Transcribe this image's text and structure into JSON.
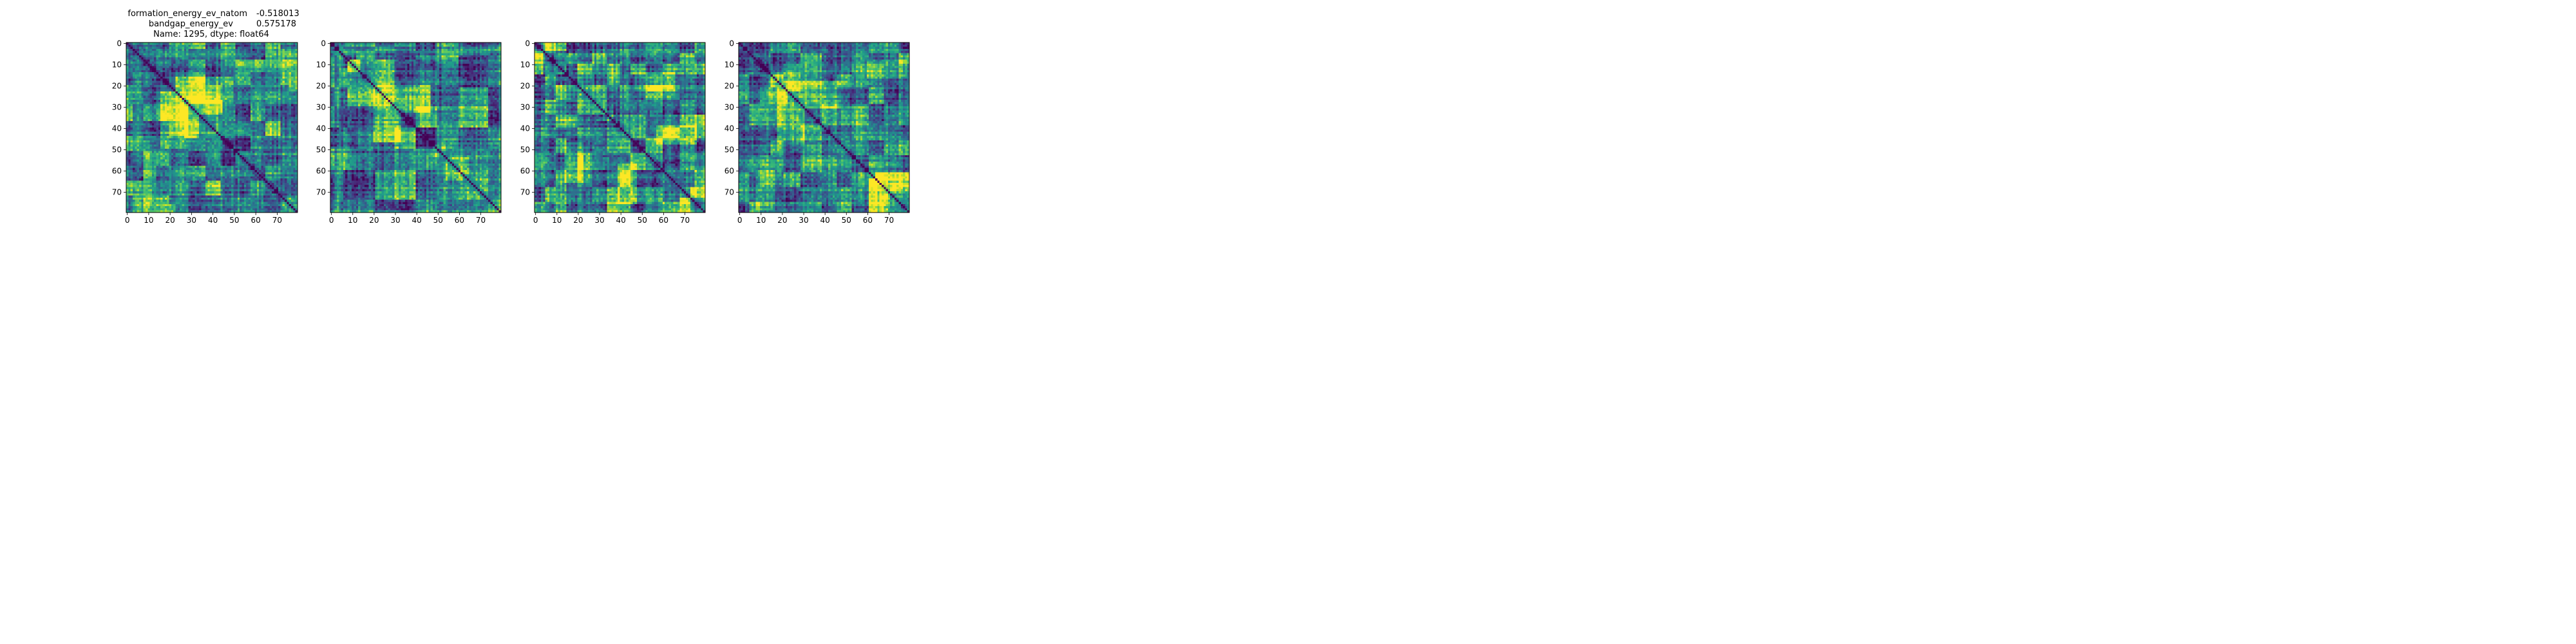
{
  "title": {
    "row1_label": "formation_energy_ev_natom",
    "row1_value": "-0.518013",
    "row2_label": "bandgap_energy_ev",
    "row2_value": "0.575178",
    "row3": "Name: 1295, dtype: float64"
  },
  "chart_data": [
    {
      "type": "heatmap",
      "n": 80,
      "colormap": "viridis",
      "xticks": [
        0,
        10,
        20,
        30,
        40,
        50,
        60,
        70
      ],
      "yticks": [
        0,
        10,
        20,
        30,
        40,
        50,
        60,
        70
      ],
      "block_boundaries": [
        0,
        3,
        8,
        14,
        20,
        29,
        37,
        44,
        51,
        58,
        65,
        72,
        80
      ],
      "diagonal": "dark",
      "seed": 11
    },
    {
      "type": "heatmap",
      "n": 80,
      "colormap": "viridis",
      "xticks": [
        0,
        10,
        20,
        30,
        40,
        50,
        60,
        70
      ],
      "yticks": [
        0,
        10,
        20,
        30,
        40,
        50,
        60,
        70
      ],
      "block_boundaries": [
        0,
        2,
        4,
        6,
        8,
        12,
        21,
        30,
        40,
        50,
        60,
        74,
        80
      ],
      "diagonal": "dark",
      "seed": 23
    },
    {
      "type": "heatmap",
      "n": 80,
      "colormap": "viridis",
      "xticks": [
        0,
        10,
        20,
        30,
        40,
        50,
        60,
        70
      ],
      "yticks": [
        0,
        10,
        20,
        30,
        40,
        50,
        60,
        70
      ],
      "block_boundaries": [
        0,
        5,
        10,
        15,
        20,
        27,
        34,
        40,
        45,
        52,
        60,
        68,
        75,
        80
      ],
      "diagonal": "dark",
      "seed": 37
    },
    {
      "type": "heatmap",
      "n": 80,
      "colormap": "viridis",
      "xticks": [
        0,
        10,
        20,
        30,
        40,
        50,
        60,
        70
      ],
      "yticks": [
        0,
        10,
        20,
        30,
        40,
        50,
        60,
        70
      ],
      "block_boundaries": [
        0,
        5,
        10,
        15,
        21,
        29,
        39,
        46,
        53,
        61,
        68,
        75,
        80
      ],
      "diagonal": "dark",
      "seed": 53
    }
  ]
}
